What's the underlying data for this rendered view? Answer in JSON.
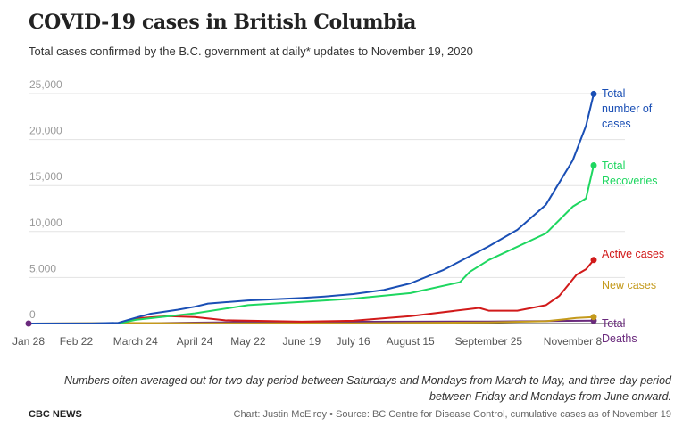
{
  "header": {
    "title": "COVID-19 cases in British Columbia",
    "subtitle": "Total cases confirmed by the B.C. government at daily* updates to November 19, 2020"
  },
  "footer": {
    "note": "Numbers often averaged out for two-day period between Saturdays and Mondays from March to May, and three-day period between Friday and Mondays from June onward.",
    "brand": "CBC NEWS",
    "credit": "Chart: Justin McElroy • Source: BC Centre for Disease Control, cumulative cases as of November 19"
  },
  "chart_data": {
    "type": "line",
    "title": "COVID-19 cases in British Columbia",
    "ylim": [
      0,
      25000
    ],
    "yticks": [
      0,
      5000,
      10000,
      15000,
      20000,
      25000
    ],
    "ytick_labels": [
      "0",
      "5,000",
      "10,000",
      "15,000",
      "20,000",
      "25,000"
    ],
    "xlim": [
      "2020-01-28",
      "2020-11-19"
    ],
    "xticks": [
      "2020-01-28",
      "2020-02-22",
      "2020-03-24",
      "2020-04-24",
      "2020-05-22",
      "2020-06-19",
      "2020-07-16",
      "2020-08-15",
      "2020-09-25",
      "2020-11-08"
    ],
    "xtick_labels": [
      "Jan 28",
      "Feb 22",
      "March 24",
      "April 24",
      "May 22",
      "June 19",
      "July 16",
      "August 15",
      "September 25",
      "November 8"
    ],
    "grid": true,
    "legend": "direct labels at right end of each line",
    "series": [
      {
        "name": "Total number of cases",
        "color": "#1a4fb5",
        "points": [
          [
            "2020-01-28",
            1
          ],
          [
            "2020-03-01",
            9
          ],
          [
            "2020-03-15",
            73
          ],
          [
            "2020-03-24",
            617
          ],
          [
            "2020-04-01",
            1066
          ],
          [
            "2020-04-15",
            1490
          ],
          [
            "2020-04-24",
            1824
          ],
          [
            "2020-05-01",
            2171
          ],
          [
            "2020-05-22",
            2507
          ],
          [
            "2020-06-19",
            2775
          ],
          [
            "2020-07-01",
            2940
          ],
          [
            "2020-07-16",
            3198
          ],
          [
            "2020-08-01",
            3641
          ],
          [
            "2020-08-15",
            4358
          ],
          [
            "2020-09-01",
            5790
          ],
          [
            "2020-09-25",
            8395
          ],
          [
            "2020-10-10",
            10185
          ],
          [
            "2020-10-25",
            12920
          ],
          [
            "2020-11-08",
            17730
          ],
          [
            "2020-11-15",
            21500
          ],
          [
            "2020-11-19",
            24960
          ]
        ]
      },
      {
        "name": "Total Recoveries",
        "color": "#1ed760",
        "points": [
          [
            "2020-03-15",
            0
          ],
          [
            "2020-03-24",
            400
          ],
          [
            "2020-04-24",
            1100
          ],
          [
            "2020-05-22",
            2000
          ],
          [
            "2020-06-19",
            2350
          ],
          [
            "2020-07-16",
            2700
          ],
          [
            "2020-08-15",
            3300
          ],
          [
            "2020-09-10",
            4500
          ],
          [
            "2020-09-15",
            5600
          ],
          [
            "2020-09-25",
            6900
          ],
          [
            "2020-10-25",
            9800
          ],
          [
            "2020-11-08",
            12700
          ],
          [
            "2020-11-15",
            13600
          ],
          [
            "2020-11-19",
            17200
          ]
        ]
      },
      {
        "name": "Active cases",
        "color": "#d11a1a",
        "points": [
          [
            "2020-03-15",
            0
          ],
          [
            "2020-03-24",
            550
          ],
          [
            "2020-04-10",
            800
          ],
          [
            "2020-04-24",
            700
          ],
          [
            "2020-05-10",
            350
          ],
          [
            "2020-06-19",
            200
          ],
          [
            "2020-07-16",
            300
          ],
          [
            "2020-08-15",
            800
          ],
          [
            "2020-09-20",
            1700
          ],
          [
            "2020-09-25",
            1400
          ],
          [
            "2020-10-10",
            1400
          ],
          [
            "2020-10-25",
            2000
          ],
          [
            "2020-11-01",
            3000
          ],
          [
            "2020-11-10",
            5300
          ],
          [
            "2020-11-15",
            5900
          ],
          [
            "2020-11-19",
            6900
          ]
        ]
      },
      {
        "name": "New cases",
        "color": "#c49a1c",
        "points": [
          [
            "2020-01-28",
            0
          ],
          [
            "2020-03-20",
            60
          ],
          [
            "2020-04-10",
            40
          ],
          [
            "2020-05-22",
            15
          ],
          [
            "2020-06-19",
            15
          ],
          [
            "2020-07-16",
            30
          ],
          [
            "2020-08-15",
            80
          ],
          [
            "2020-09-25",
            120
          ],
          [
            "2020-10-25",
            250
          ],
          [
            "2020-11-10",
            600
          ],
          [
            "2020-11-19",
            700
          ]
        ]
      },
      {
        "name": "Total Deaths",
        "color": "#6a2a7d",
        "points": [
          [
            "2020-01-28",
            0
          ],
          [
            "2020-03-24",
            13
          ],
          [
            "2020-04-24",
            94
          ],
          [
            "2020-05-22",
            163
          ],
          [
            "2020-06-19",
            168
          ],
          [
            "2020-07-16",
            189
          ],
          [
            "2020-08-15",
            200
          ],
          [
            "2020-09-25",
            227
          ],
          [
            "2020-10-25",
            267
          ],
          [
            "2020-11-19",
            310
          ]
        ]
      }
    ],
    "end_labels": [
      [
        "Total",
        "number of",
        "cases"
      ],
      [
        "Total",
        "Recoveries"
      ],
      [
        "Active cases"
      ],
      [
        "New cases"
      ],
      [
        "Total",
        "Deaths"
      ]
    ]
  }
}
